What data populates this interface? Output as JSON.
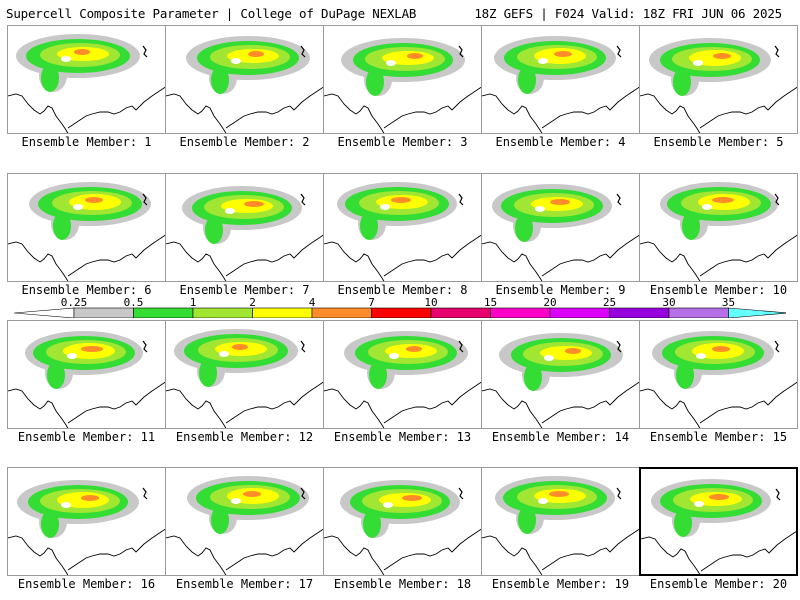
{
  "header": {
    "title_left": "Supercell Composite Parameter | College of DuPage NEXLAB",
    "title_right": "18Z GEFS | F024 Valid: 18Z FRI JUN 06 2025"
  },
  "panels": [
    {
      "label": "Ensemble Member: 1"
    },
    {
      "label": "Ensemble Member: 2"
    },
    {
      "label": "Ensemble Member: 3"
    },
    {
      "label": "Ensemble Member: 4"
    },
    {
      "label": "Ensemble Member: 5"
    },
    {
      "label": "Ensemble Member: 6"
    },
    {
      "label": "Ensemble Member: 7"
    },
    {
      "label": "Ensemble Member: 8"
    },
    {
      "label": "Ensemble Member: 9"
    },
    {
      "label": "Ensemble Member: 10"
    },
    {
      "label": "Ensemble Member: 11"
    },
    {
      "label": "Ensemble Member: 12"
    },
    {
      "label": "Ensemble Member: 13"
    },
    {
      "label": "Ensemble Member: 14"
    },
    {
      "label": "Ensemble Member: 15"
    },
    {
      "label": "Ensemble Member: 16"
    },
    {
      "label": "Ensemble Member: 17"
    },
    {
      "label": "Ensemble Member: 18"
    },
    {
      "label": "Ensemble Member: 19"
    },
    {
      "label": "Ensemble Member: 20",
      "selected": true
    }
  ],
  "colorbar": {
    "ticks": [
      "0.25",
      "0.5",
      "1",
      "2",
      "4",
      "7",
      "10",
      "15",
      "20",
      "25",
      "30",
      "35"
    ],
    "colors": [
      "#ffffff",
      "#c8c8c8",
      "#33dd33",
      "#a0e632",
      "#ffff00",
      "#ff8c28",
      "#ff0000",
      "#e6006e",
      "#ff00c8",
      "#dc00ff",
      "#9600dc",
      "#b46ee6",
      "#66ffff"
    ]
  }
}
